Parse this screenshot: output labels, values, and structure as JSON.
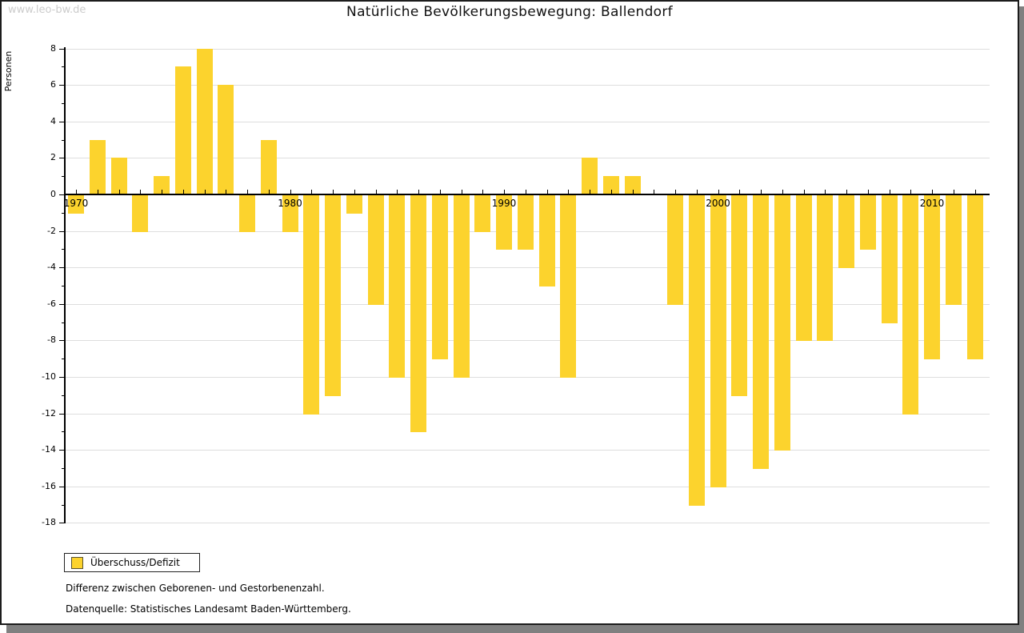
{
  "watermark": "www.leo-bw.de",
  "footnotes": [
    "Differenz zwischen Geborenen- und Gestorbenenzahl.",
    "Datenquelle: Statistisches Landesamt Baden-Württemberg."
  ],
  "chart_data": {
    "type": "bar",
    "title": "Natürliche Bevölkerungsbewegung: Ballendorf",
    "ylabel": "Personen",
    "xlabel": "",
    "series_name": "Überschuss/Defizit",
    "bar_color": "#fcd32d",
    "grid": true,
    "legend_position": "bottom-left",
    "ylim": [
      -18,
      8
    ],
    "ytick_step": 2,
    "yticks": [
      8,
      6,
      4,
      2,
      0,
      -2,
      -4,
      -6,
      -8,
      -10,
      -12,
      -14,
      -16,
      -18
    ],
    "xticks": [
      1970,
      1980,
      1990,
      2000,
      2010
    ],
    "x": [
      1970,
      1971,
      1972,
      1973,
      1974,
      1975,
      1976,
      1977,
      1978,
      1979,
      1980,
      1981,
      1982,
      1983,
      1984,
      1985,
      1986,
      1987,
      1988,
      1989,
      1990,
      1991,
      1992,
      1993,
      1994,
      1995,
      1996,
      1997,
      1998,
      1999,
      2000,
      2001,
      2002,
      2003,
      2004,
      2005,
      2006,
      2007,
      2008,
      2009,
      2010,
      2011,
      2012
    ],
    "values": [
      -1,
      3,
      2,
      -2,
      1,
      7,
      8,
      6,
      -2,
      3,
      -2,
      -12,
      -11,
      -1,
      -6,
      -10,
      -13,
      -9,
      -10,
      -2,
      -3,
      -3,
      -5,
      -10,
      2,
      1,
      1,
      0,
      -6,
      -17,
      -16,
      -11,
      -15,
      -14,
      -8,
      -8,
      -4,
      -3,
      -7,
      -12,
      -9,
      -6,
      -9
    ]
  }
}
